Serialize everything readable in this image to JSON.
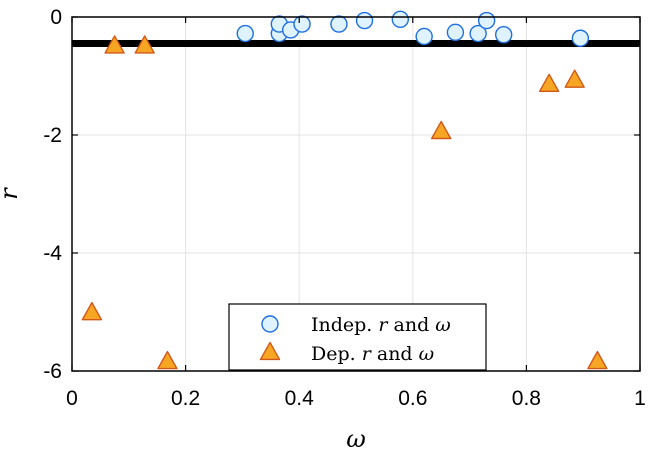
{
  "chart_data": {
    "type": "scatter",
    "xlabel": "ω",
    "ylabel": "r",
    "xlim": [
      0,
      1
    ],
    "ylim": [
      -6,
      0
    ],
    "xticks": [
      0,
      0.2,
      0.4,
      0.6,
      0.8,
      1
    ],
    "xtick_labels": [
      "0",
      "0.2",
      "0.4",
      "0.6",
      "0.8",
      "1"
    ],
    "yticks": [
      0,
      -2,
      -4,
      -6
    ],
    "ytick_labels": [
      "0",
      "-2",
      "-4",
      "-6"
    ],
    "grid": true,
    "legend_position": "bottom-center",
    "reference_line": {
      "y": -0.45,
      "color": "#000000"
    },
    "series": [
      {
        "name": "Indep. r and ω",
        "legend_parts": [
          {
            "text": "Indep. ",
            "math": false
          },
          {
            "text": "r",
            "math": true
          },
          {
            "text": " and ",
            "math": false
          },
          {
            "text": "ω",
            "math": true
          }
        ],
        "marker": "circle",
        "stroke": "#1f6fe0",
        "fill": "#dff3ff",
        "points": [
          {
            "x": 0.305,
            "y": -0.28
          },
          {
            "x": 0.365,
            "y": -0.28
          },
          {
            "x": 0.365,
            "y": -0.12
          },
          {
            "x": 0.385,
            "y": -0.22
          },
          {
            "x": 0.405,
            "y": -0.12
          },
          {
            "x": 0.47,
            "y": -0.12
          },
          {
            "x": 0.515,
            "y": -0.06
          },
          {
            "x": 0.578,
            "y": -0.04
          },
          {
            "x": 0.62,
            "y": -0.33
          },
          {
            "x": 0.675,
            "y": -0.26
          },
          {
            "x": 0.715,
            "y": -0.28
          },
          {
            "x": 0.73,
            "y": -0.06
          },
          {
            "x": 0.76,
            "y": -0.3
          },
          {
            "x": 0.895,
            "y": -0.36
          }
        ]
      },
      {
        "name": "Dep. r and ω",
        "legend_parts": [
          {
            "text": "Dep. ",
            "math": false
          },
          {
            "text": "r",
            "math": true
          },
          {
            "text": " and ",
            "math": false
          },
          {
            "text": "ω",
            "math": true
          }
        ],
        "marker": "triangle",
        "stroke": "#d2581a",
        "fill": "#f6a623",
        "points": [
          {
            "x": 0.035,
            "y": -5.02
          },
          {
            "x": 0.075,
            "y": -0.5
          },
          {
            "x": 0.128,
            "y": -0.5
          },
          {
            "x": 0.168,
            "y": -5.85
          },
          {
            "x": 0.65,
            "y": -1.95
          },
          {
            "x": 0.84,
            "y": -1.15
          },
          {
            "x": 0.885,
            "y": -1.08
          },
          {
            "x": 0.925,
            "y": -5.85
          }
        ]
      }
    ]
  }
}
